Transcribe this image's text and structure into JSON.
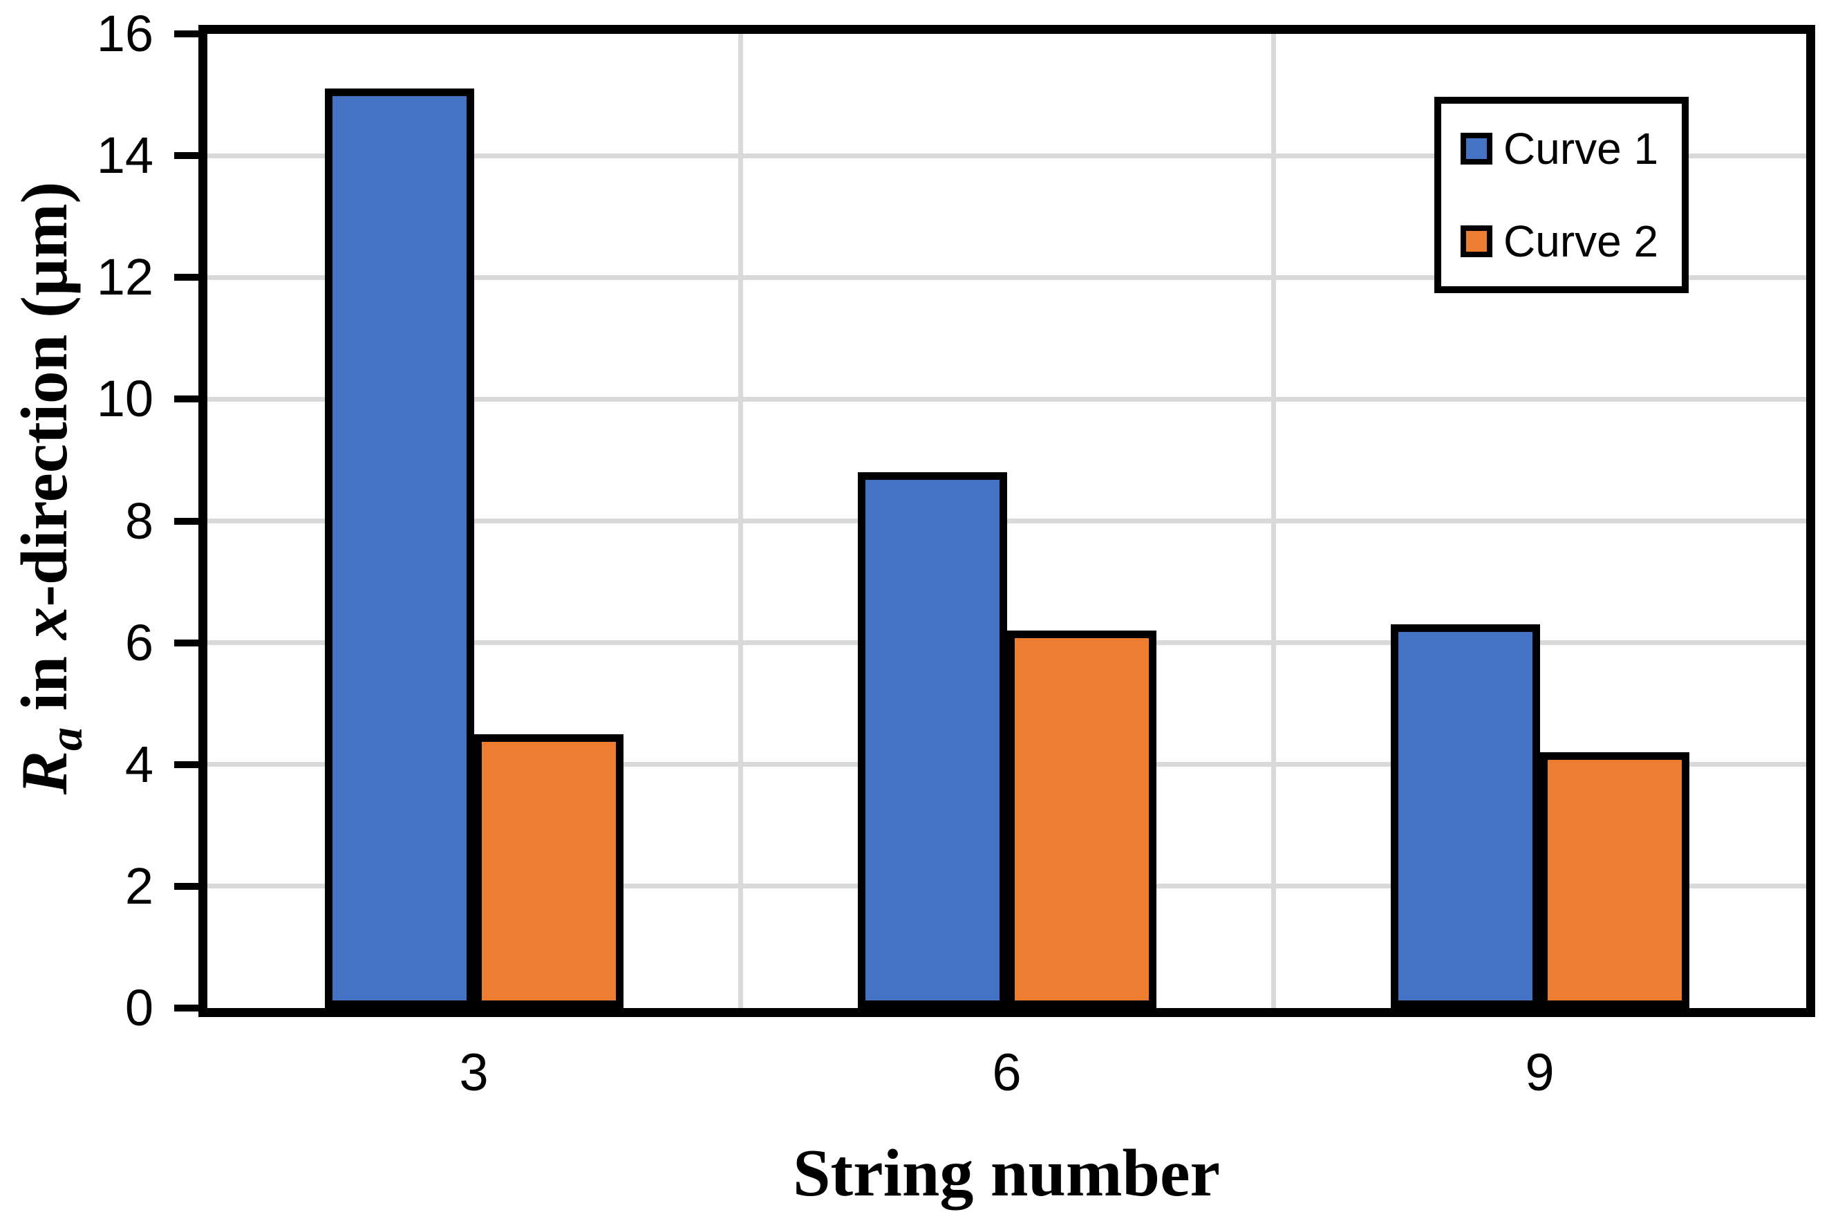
{
  "chart_data": {
    "type": "bar",
    "categories": [
      "3",
      "6",
      "9"
    ],
    "series": [
      {
        "name": "Curve 1",
        "color": "#4472C4",
        "values": [
          15.1,
          8.8,
          6.3
        ]
      },
      {
        "name": "Curve 2",
        "color": "#ED7D31",
        "values": [
          4.5,
          6.2,
          4.2
        ]
      }
    ],
    "xlabel": "String number",
    "ylabel": "Ra in x-direction (µm)",
    "ylabel_parts": {
      "symbol": "R",
      "subscript": "a",
      "infix": " in ",
      "variable": "x",
      "suffix": "-direction (µm)"
    },
    "ylim": [
      0,
      16
    ],
    "yticks": [
      0,
      2,
      4,
      6,
      8,
      10,
      12,
      14,
      16
    ],
    "grid": {
      "horizontal": true,
      "vertical_category_boundaries": true,
      "color": "#D9D9D9"
    },
    "legend": {
      "position": "top-right",
      "border_color": "#000000"
    },
    "axis_color": "#000000",
    "bar_border_color": "#000000",
    "plot_background": "#FFFFFF"
  }
}
